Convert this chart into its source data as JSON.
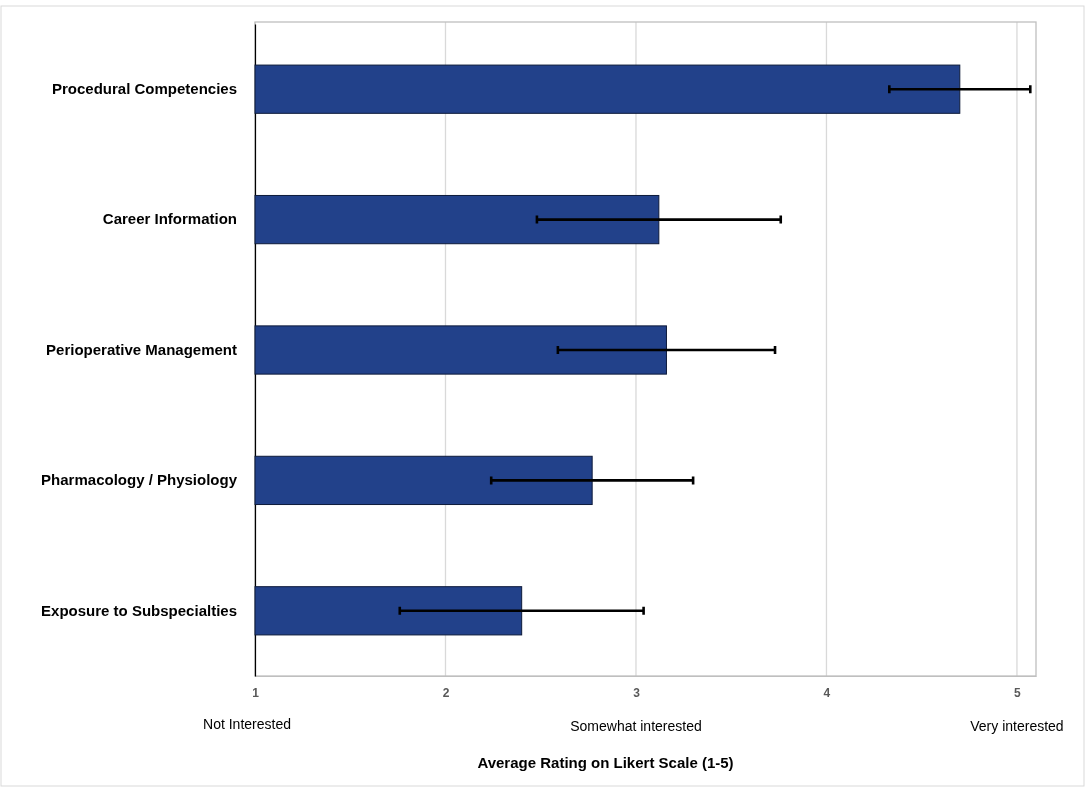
{
  "chart_data": {
    "type": "bar",
    "orientation": "horizontal",
    "xlabel": "Average Rating on Likert Scale (1-5)",
    "categories": [
      "Procedural Competencies",
      "Career Information",
      "Perioperative Management",
      "Pharmacology / Physiology",
      "Exposure to Subspecialties"
    ],
    "values": [
      4.7,
      3.12,
      3.16,
      2.77,
      2.4
    ],
    "errors": [
      0.37,
      0.64,
      0.57,
      0.53,
      0.64
    ],
    "color": "#22418a",
    "xlim": [
      1,
      5.1
    ],
    "xticks": [
      1,
      2,
      3,
      4,
      5
    ],
    "grid": "x",
    "annotations": [
      "Not Interested",
      "Somewhat interested",
      "Very interested"
    ]
  }
}
